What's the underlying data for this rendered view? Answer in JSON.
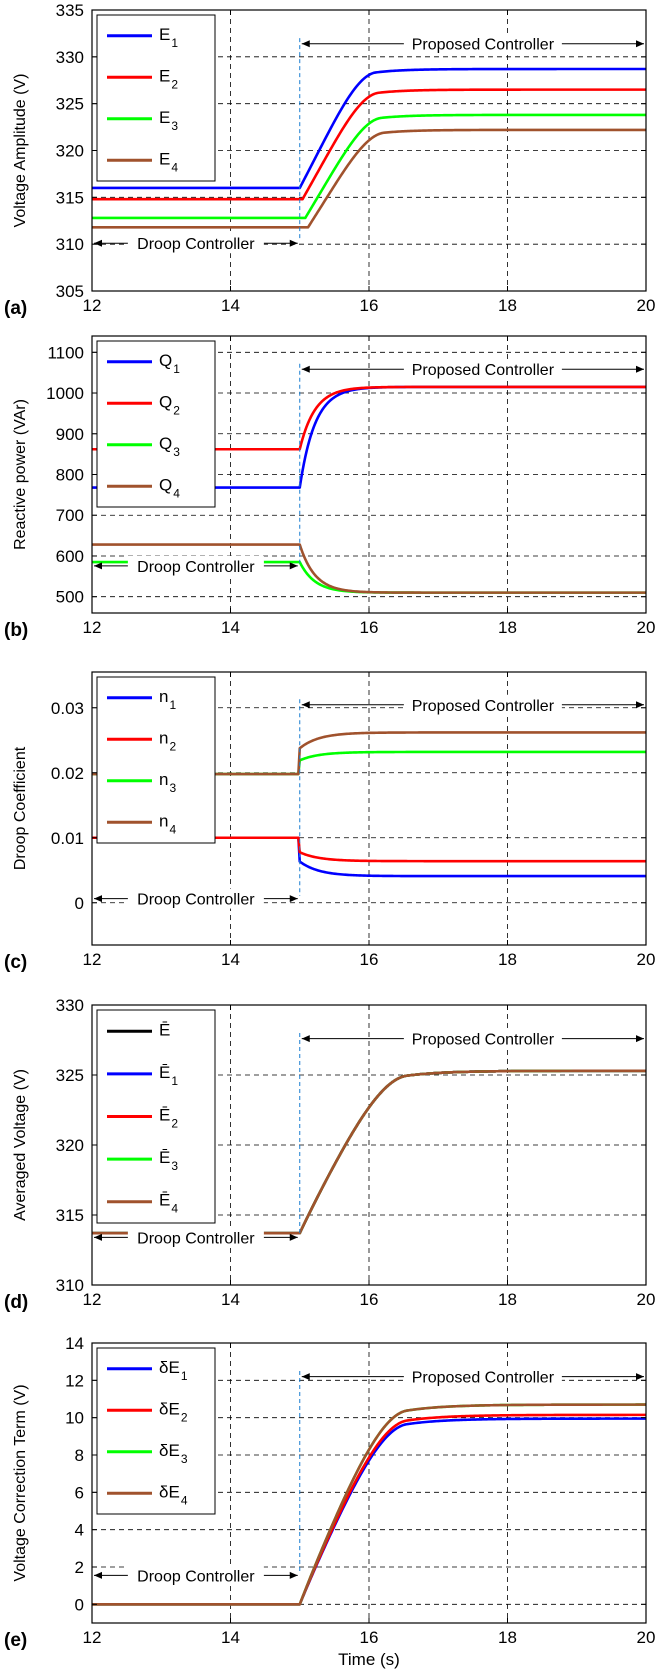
{
  "colors": {
    "blue": "#0000ff",
    "red": "#ff0000",
    "green": "#00ff00",
    "brown": "#a0522d",
    "black": "#000000",
    "marker": "#1a7fd1",
    "grid": "#000000"
  },
  "chart_data": [
    {
      "panel": "(a)",
      "type": "line",
      "ylabel": "Voltage Amplitude (V)",
      "xlabel": "",
      "xlim": [
        12,
        20
      ],
      "ylim": [
        305,
        335
      ],
      "xticks": [
        12,
        14,
        16,
        18,
        20
      ],
      "yticks": [
        305,
        310,
        315,
        320,
        325,
        330,
        335
      ],
      "grid": true,
      "legend_position": "top-left",
      "switch_time": 15,
      "annotations": {
        "left": "Droop Controller",
        "right": "Proposed Controller"
      },
      "series": [
        {
          "name": "E",
          "sub": "1",
          "color": "blue",
          "before": 316.0,
          "after": 328.7
        },
        {
          "name": "E",
          "sub": "2",
          "color": "red",
          "before": 314.8,
          "after": 326.5
        },
        {
          "name": "E",
          "sub": "3",
          "color": "green",
          "before": 312.8,
          "after": 323.8
        },
        {
          "name": "E",
          "sub": "4",
          "color": "brown",
          "before": 311.8,
          "after": 322.2
        }
      ]
    },
    {
      "panel": "(b)",
      "type": "line",
      "ylabel": "Reactive power (VAr)",
      "xlabel": "",
      "xlim": [
        12,
        20
      ],
      "ylim": [
        460,
        1140
      ],
      "xticks": [
        12,
        14,
        16,
        18,
        20
      ],
      "yticks": [
        500,
        600,
        700,
        800,
        900,
        1000,
        1100
      ],
      "grid": true,
      "legend_position": "top-left",
      "switch_time": 15,
      "annotations": {
        "left": "Droop Controller",
        "right": "Proposed Controller"
      },
      "series": [
        {
          "name": "Q",
          "sub": "1",
          "color": "blue",
          "before": 768,
          "after": 1015
        },
        {
          "name": "Q",
          "sub": "2",
          "color": "red",
          "before": 862,
          "after": 1015
        },
        {
          "name": "Q",
          "sub": "3",
          "color": "green",
          "before": 585,
          "after": 510
        },
        {
          "name": "Q",
          "sub": "4",
          "color": "brown",
          "before": 628,
          "after": 510
        }
      ]
    },
    {
      "panel": "(c)",
      "type": "line",
      "ylabel": "Droop Coefficient",
      "xlabel": "",
      "xlim": [
        12,
        20
      ],
      "ylim": [
        -0.0065,
        0.0355
      ],
      "xticks": [
        12,
        14,
        16,
        18,
        20
      ],
      "yticks": [
        0,
        0.01,
        0.02,
        0.03
      ],
      "ytick_labels": [
        "0",
        "0.01",
        "0.02",
        "0.03"
      ],
      "grid": true,
      "legend_position": "top-left",
      "switch_time": 15,
      "annotations": {
        "left": "Droop Controller",
        "right": "Proposed Controller"
      },
      "series": [
        {
          "name": "n",
          "sub": "1",
          "color": "blue",
          "before": 0.01,
          "after": 0.0041
        },
        {
          "name": "n",
          "sub": "2",
          "color": "red",
          "before": 0.01,
          "after": 0.0064
        },
        {
          "name": "n",
          "sub": "3",
          "color": "green",
          "before": 0.0198,
          "after": 0.0232
        },
        {
          "name": "n",
          "sub": "4",
          "color": "brown",
          "before": 0.0198,
          "after": 0.0262
        }
      ]
    },
    {
      "panel": "(d)",
      "type": "line",
      "ylabel": "Averaged Voltage (V)",
      "xlabel": "",
      "xlim": [
        12,
        20
      ],
      "ylim": [
        310,
        330
      ],
      "xticks": [
        12,
        14,
        16,
        18,
        20
      ],
      "yticks": [
        310,
        315,
        320,
        325,
        330
      ],
      "grid": true,
      "legend_position": "top-left",
      "switch_time": 15,
      "annotations": {
        "left": "Droop Controller",
        "right": "Proposed Controller"
      },
      "series": [
        {
          "name": "Ē",
          "sub": "",
          "color": "black",
          "before": 313.7,
          "after": 325.3
        },
        {
          "name": "Ē",
          "sub": "1",
          "color": "blue",
          "before": 313.7,
          "after": 325.3
        },
        {
          "name": "Ē",
          "sub": "2",
          "color": "red",
          "before": 313.7,
          "after": 325.3
        },
        {
          "name": "Ē",
          "sub": "3",
          "color": "green",
          "before": 313.7,
          "after": 325.3
        },
        {
          "name": "Ē",
          "sub": "4",
          "color": "brown",
          "before": 313.7,
          "after": 325.3
        }
      ]
    },
    {
      "panel": "(e)",
      "type": "line",
      "ylabel": "Voltage Correction Term (V)",
      "xlabel": "Time (s)",
      "xlim": [
        12,
        20
      ],
      "ylim": [
        -1,
        14
      ],
      "xticks": [
        12,
        14,
        16,
        18,
        20
      ],
      "yticks": [
        0,
        2,
        4,
        6,
        8,
        10,
        12,
        14
      ],
      "grid": true,
      "legend_position": "top-left",
      "switch_time": 15,
      "annotations": {
        "left": "Droop Controller",
        "right": "Proposed Controller"
      },
      "series": [
        {
          "name": "δE",
          "sub": "1",
          "color": "blue",
          "before": 0,
          "after": 9.95
        },
        {
          "name": "δE",
          "sub": "2",
          "color": "red",
          "before": 0,
          "after": 10.15
        },
        {
          "name": "δE",
          "sub": "3",
          "color": "green",
          "before": 0,
          "after": 10.7
        },
        {
          "name": "δE",
          "sub": "4",
          "color": "brown",
          "before": 0,
          "after": 10.7
        }
      ]
    }
  ]
}
